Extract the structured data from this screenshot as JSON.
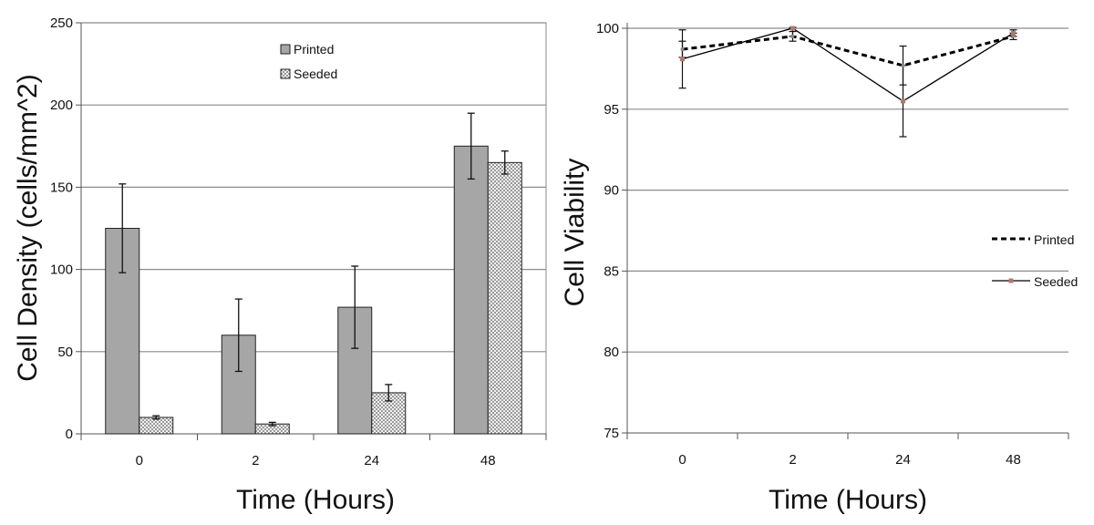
{
  "chart_data": [
    {
      "type": "bar",
      "xlabel": "Time (Hours)",
      "ylabel": "Cell Density (cells/mm^2)",
      "categories": [
        "0",
        "2",
        "24",
        "48"
      ],
      "ylim": [
        0,
        250
      ],
      "yticks": [
        0,
        50,
        100,
        150,
        200,
        250
      ],
      "grid": true,
      "legend_position": "top-center",
      "series": [
        {
          "name": "Printed",
          "values": [
            125,
            60,
            77,
            175
          ],
          "error": [
            27,
            22,
            25,
            20
          ],
          "color": "#a6a6a6",
          "pattern": "solid"
        },
        {
          "name": "Seeded",
          "values": [
            10,
            6,
            25,
            165
          ],
          "error": [
            1,
            1,
            5,
            7
          ],
          "color": "#d9d9d9",
          "pattern": "checker"
        }
      ]
    },
    {
      "type": "line",
      "xlabel": "Time (Hours)",
      "ylabel": "Cell Viability",
      "categories": [
        "0",
        "2",
        "24",
        "48"
      ],
      "ylim": [
        75,
        100
      ],
      "yticks": [
        75,
        80,
        85,
        90,
        95,
        100
      ],
      "grid": true,
      "legend_position": "right",
      "series": [
        {
          "name": "Printed",
          "values": [
            98.7,
            99.5,
            97.7,
            99.5
          ],
          "error": [
            0.5,
            0.3,
            1.2,
            0.2
          ],
          "style": "dashed",
          "color": "#000000"
        },
        {
          "name": "Seeded",
          "values": [
            98.1,
            100.0,
            95.5,
            99.7
          ],
          "error": [
            1.8,
            0.5,
            2.2,
            0.2
          ],
          "style": "solid",
          "color": "#000000",
          "marker_color": "#b07a6a"
        }
      ]
    }
  ]
}
